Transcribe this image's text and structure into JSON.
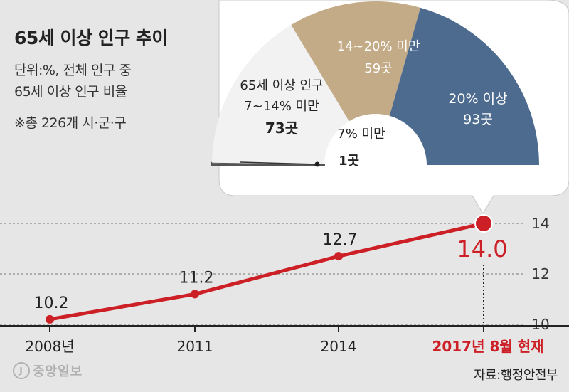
{
  "title": "65세 이상 인구 추이",
  "subtitle_lines": [
    "단위:%, 전체 인구 중",
    "65세 이상 인구 비율"
  ],
  "note": "※총 226개 시·군·구",
  "logo_text": "중앙일보",
  "source": "자료:행정안전부",
  "colors": {
    "line": "#cc1f26",
    "highlight": "#cc1f26",
    "seg_under7": "#ffffff",
    "seg_7_14": "#f2f2f2",
    "seg_14_20": "#c4ab87",
    "seg_20plus": "#4d6b8f"
  },
  "chart_data": [
    {
      "type": "line",
      "title": "65세 이상 인구 추이",
      "categories": [
        "2008년",
        "2011",
        "2014",
        "2017년 8월 현재"
      ],
      "series": [
        {
          "values": [
            10.2,
            11.2,
            12.7,
            14.0
          ]
        }
      ],
      "data_labels": [
        "10.2",
        "11.2",
        "12.7",
        "14.0"
      ],
      "y_ticks": [
        10,
        12,
        14
      ],
      "y_tick_labels": [
        "10",
        "12",
        "14"
      ],
      "ylim": [
        9.6,
        14.6
      ],
      "highlight_index": 3,
      "grid": "dashed horizontal at ticks"
    },
    {
      "type": "pie",
      "shape": "semicircle",
      "labels": [
        {
          "lines": [
            "7% 미만"
          ],
          "count": "1곳"
        },
        {
          "lines": [
            "65세 이상 인구",
            "7~14% 미만"
          ],
          "count": "73곳"
        },
        {
          "lines": [
            "14~20% 미만"
          ],
          "count": "59곳"
        },
        {
          "lines": [
            "20% 이상"
          ],
          "count": "93곳"
        }
      ],
      "values": [
        1,
        73,
        59,
        93
      ],
      "total": 226
    }
  ]
}
